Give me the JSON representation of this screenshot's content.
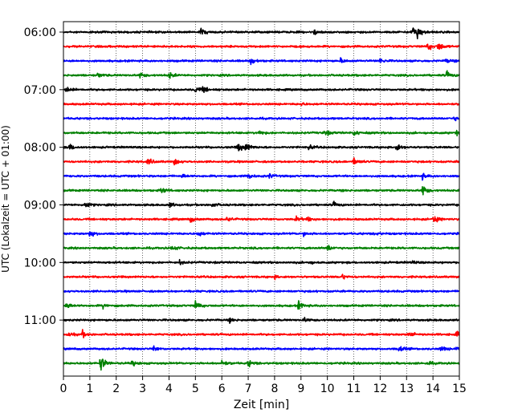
{
  "chart_data": {
    "type": "line",
    "title": "",
    "xlabel": "Zeit  [min]",
    "ylabel": "UTC (Lokalzeit = UTC + 01:00)",
    "xlim": [
      0,
      15
    ],
    "x_ticks": [
      0,
      1,
      2,
      3,
      4,
      5,
      6,
      7,
      8,
      9,
      10,
      11,
      12,
      13,
      14,
      15
    ],
    "y_tick_labels": [
      "06:00",
      "07:00",
      "08:00",
      "09:00",
      "10:00",
      "11:00"
    ],
    "grid": "vertical dotted at each minute",
    "legend": "none",
    "trace_interval_min": 15,
    "traces": [
      {
        "start": "06:00",
        "color": "#000000",
        "events": [
          [
            5.2,
            1.0
          ],
          [
            9.5,
            0.6
          ],
          [
            13.2,
            1.6
          ],
          [
            13.4,
            1.2
          ]
        ]
      },
      {
        "start": "06:15",
        "color": "#ff0000",
        "events": [
          [
            13.8,
            0.9
          ],
          [
            14.2,
            1.1
          ]
        ]
      },
      {
        "start": "06:30",
        "color": "#0000ff",
        "events": [
          [
            7.1,
            0.8
          ],
          [
            10.5,
            0.5
          ],
          [
            12.0,
            0.6
          ],
          [
            14.5,
            0.5
          ]
        ]
      },
      {
        "start": "06:45",
        "color": "#008000",
        "events": [
          [
            1.3,
            0.5
          ],
          [
            2.9,
            0.6
          ],
          [
            4.0,
            0.8
          ],
          [
            14.5,
            0.9
          ]
        ]
      },
      {
        "start": "07:00",
        "color": "#000000",
        "events": [
          [
            0.1,
            0.8
          ],
          [
            5.0,
            0.8
          ],
          [
            5.3,
            0.7
          ]
        ]
      },
      {
        "start": "07:15",
        "color": "#ff0000",
        "events": [
          [
            9.0,
            0.3
          ]
        ]
      },
      {
        "start": "07:30",
        "color": "#0000ff",
        "events": [
          [
            14.8,
            0.4
          ]
        ]
      },
      {
        "start": "07:45",
        "color": "#008000",
        "events": [
          [
            7.4,
            0.6
          ],
          [
            9.9,
            0.7
          ],
          [
            11.0,
            0.8
          ],
          [
            14.9,
            1.0
          ]
        ]
      },
      {
        "start": "08:00",
        "color": "#000000",
        "events": [
          [
            0.2,
            0.9
          ],
          [
            6.6,
            1.2
          ],
          [
            6.9,
            1.0
          ],
          [
            9.3,
            0.5
          ],
          [
            12.6,
            1.0
          ]
        ]
      },
      {
        "start": "08:15",
        "color": "#ff0000",
        "events": [
          [
            3.2,
            0.8
          ],
          [
            4.2,
            0.7
          ],
          [
            11.0,
            0.9
          ]
        ]
      },
      {
        "start": "08:30",
        "color": "#0000ff",
        "events": [
          [
            4.5,
            0.4
          ],
          [
            7.0,
            0.6
          ],
          [
            7.8,
            0.5
          ],
          [
            13.6,
            0.6
          ]
        ]
      },
      {
        "start": "08:45",
        "color": "#008000",
        "events": [
          [
            3.7,
            0.7
          ],
          [
            13.6,
            1.3
          ]
        ]
      },
      {
        "start": "09:00",
        "color": "#000000",
        "events": [
          [
            0.8,
            0.9
          ],
          [
            4.0,
            0.6
          ],
          [
            5.6,
            0.6
          ],
          [
            10.2,
            0.7
          ]
        ]
      },
      {
        "start": "09:15",
        "color": "#ff0000",
        "events": [
          [
            4.8,
            0.7
          ],
          [
            6.2,
            0.5
          ],
          [
            8.8,
            0.6
          ],
          [
            9.2,
            0.5
          ],
          [
            14.0,
            1.0
          ]
        ]
      },
      {
        "start": "09:30",
        "color": "#0000ff",
        "events": [
          [
            1.0,
            0.8
          ],
          [
            5.1,
            0.6
          ],
          [
            9.1,
            0.4
          ],
          [
            11.8,
            0.4
          ]
        ]
      },
      {
        "start": "09:45",
        "color": "#008000",
        "events": [
          [
            4.1,
            0.6
          ],
          [
            10.0,
            0.8
          ]
        ]
      },
      {
        "start": "10:00",
        "color": "#000000",
        "events": [
          [
            4.4,
            0.4
          ],
          [
            9.3,
            0.3
          ],
          [
            13.2,
            0.3
          ]
        ]
      },
      {
        "start": "10:15",
        "color": "#ff0000",
        "events": [
          [
            8.0,
            0.3
          ],
          [
            10.5,
            0.8
          ]
        ]
      },
      {
        "start": "10:30",
        "color": "#0000ff",
        "events": []
      },
      {
        "start": "10:45",
        "color": "#008000",
        "events": [
          [
            0.1,
            0.7
          ],
          [
            1.5,
            0.5
          ],
          [
            5.0,
            1.0
          ],
          [
            8.9,
            1.0
          ]
        ]
      },
      {
        "start": "11:00",
        "color": "#000000",
        "events": [
          [
            6.3,
            0.4
          ],
          [
            9.1,
            0.5
          ]
        ]
      },
      {
        "start": "11:15",
        "color": "#ff0000",
        "events": [
          [
            0.2,
            0.6
          ],
          [
            0.7,
            0.8
          ],
          [
            13.1,
            0.7
          ],
          [
            14.9,
            0.6
          ]
        ]
      },
      {
        "start": "11:30",
        "color": "#0000ff",
        "events": [
          [
            3.4,
            0.6
          ],
          [
            12.7,
            0.9
          ],
          [
            14.3,
            0.6
          ],
          [
            14.9,
            0.7
          ]
        ]
      },
      {
        "start": "11:45",
        "color": "#008000",
        "events": [
          [
            1.4,
            1.9
          ],
          [
            2.6,
            0.6
          ],
          [
            6.0,
            0.7
          ],
          [
            7.0,
            0.8
          ],
          [
            13.8,
            0.4
          ]
        ]
      }
    ]
  }
}
